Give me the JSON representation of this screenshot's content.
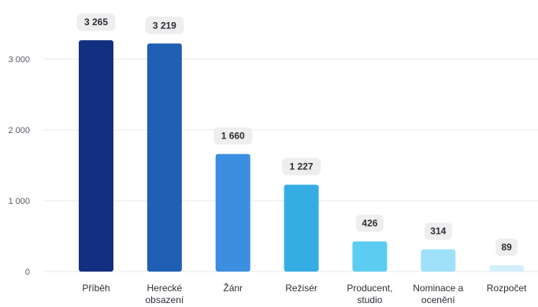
{
  "chart_data": {
    "type": "bar",
    "categories": [
      [
        "Příběh"
      ],
      [
        "Herecké",
        "obsazení"
      ],
      [
        "Žánr"
      ],
      [
        "Režisér"
      ],
      [
        "Producent,",
        "studio"
      ],
      [
        "Nominace a",
        "ocenění"
      ],
      [
        "Rozpočet"
      ]
    ],
    "values": [
      3265,
      3219,
      1660,
      1227,
      426,
      314,
      89
    ],
    "value_labels": [
      "3 265",
      "3 219",
      "1 660",
      "1 227",
      "426",
      "314",
      "89"
    ],
    "colors": [
      "#132f7f",
      "#1f5fb4",
      "#3c8ee0",
      "#35ade4",
      "#5ccdf0",
      "#9ee0f7",
      "#d3effb"
    ],
    "y_ticks": [
      0,
      1000,
      2000,
      3000
    ],
    "y_tick_labels": [
      "0",
      "1 000",
      "2 000",
      "3 000"
    ],
    "ylim": [
      0,
      3650
    ],
    "grid": true,
    "title": "",
    "xlabel": "",
    "ylabel": ""
  }
}
